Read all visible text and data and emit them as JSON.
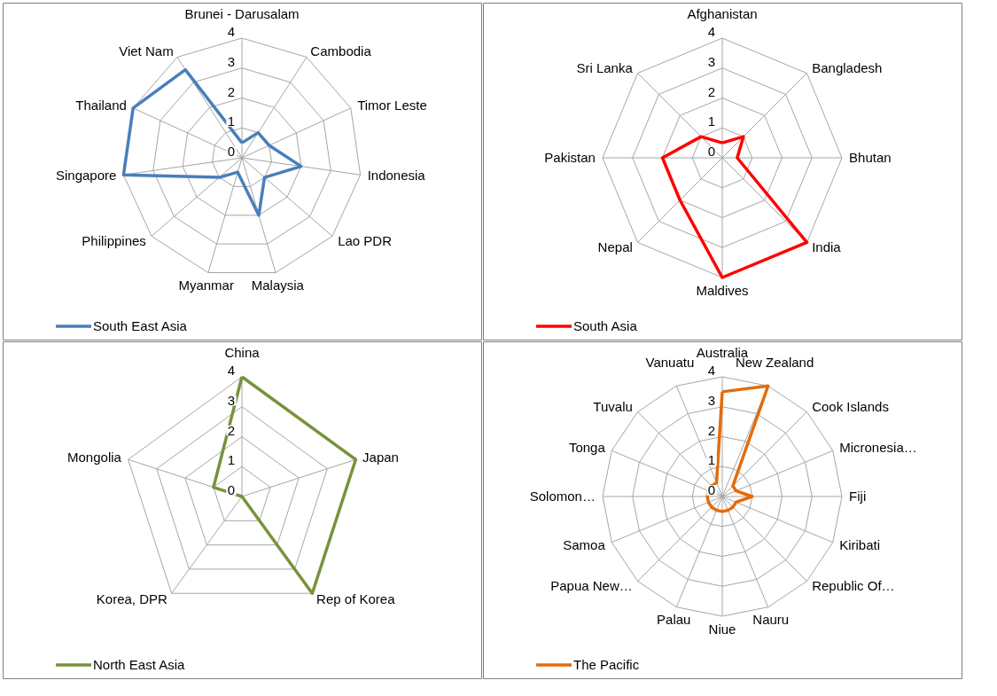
{
  "chart_data": [
    {
      "type": "radar",
      "categories": [
        "Brunei - Darusalam",
        "Cambodia",
        "Timor Leste",
        "Indonesia",
        "Lao PDR",
        "Malaysia",
        "Myanmar",
        "Philippines",
        "Singapore",
        "Thailand",
        "Viet Nam"
      ],
      "series": [
        {
          "name": "South East Asia",
          "color": "#4a7ebb",
          "values": [
            0.5,
            1.0,
            1.0,
            2.0,
            1.0,
            2.0,
            0.5,
            1.0,
            4.0,
            4.0,
            3.5
          ]
        }
      ],
      "ylim": [
        0,
        4
      ],
      "yticks": [
        0,
        1,
        2,
        3,
        4
      ],
      "grid": true,
      "legend": "bottom left"
    },
    {
      "type": "radar",
      "categories": [
        "Afghanistan",
        "Bangladesh",
        "Bhutan",
        "India",
        "Maldives",
        "Nepal",
        "Pakistan",
        "Sri Lanka"
      ],
      "series": [
        {
          "name": "South Asia",
          "color": "#ff0000",
          "values": [
            0.5,
            1.0,
            0.5,
            4.0,
            4.0,
            2.0,
            2.0,
            1.0
          ]
        }
      ],
      "ylim": [
        0,
        4
      ],
      "yticks": [
        0,
        1,
        2,
        3,
        4
      ],
      "grid": true,
      "legend": "bottom left"
    },
    {
      "type": "radar",
      "categories": [
        "China",
        "Japan",
        "Rep of Korea",
        "Korea, DPR",
        "Mongolia"
      ],
      "series": [
        {
          "name": "North East Asia",
          "color": "#77933c",
          "values": [
            4.0,
            4.0,
            4.0,
            0.0,
            1.0
          ]
        }
      ],
      "ylim": [
        0,
        4
      ],
      "yticks": [
        0,
        1,
        2,
        3,
        4
      ],
      "grid": true,
      "legend": "bottom left"
    },
    {
      "type": "radar",
      "categories": [
        "Australia",
        "New Zealand",
        "Cook Islands",
        "Micronesia…",
        "Fiji",
        "Kiribati",
        "Republic Of…",
        "Nauru",
        "Niue",
        "Palau",
        "Papua New…",
        "Samoa",
        "Solomon…",
        "Tonga",
        "Tuvalu",
        "Vanuatu"
      ],
      "series": [
        {
          "name": "The Pacific",
          "color": "#e46c0a",
          "values": [
            3.5,
            4.0,
            0.5,
            0.5,
            1.0,
            0.5,
            0.5,
            0.5,
            0.5,
            0.5,
            0.5,
            0.5,
            0.5,
            0.5,
            0.5,
            0.5
          ]
        }
      ],
      "ylim": [
        0,
        4
      ],
      "yticks": [
        0,
        1,
        2,
        3,
        4
      ],
      "grid": true,
      "legend": "bottom left"
    }
  ]
}
